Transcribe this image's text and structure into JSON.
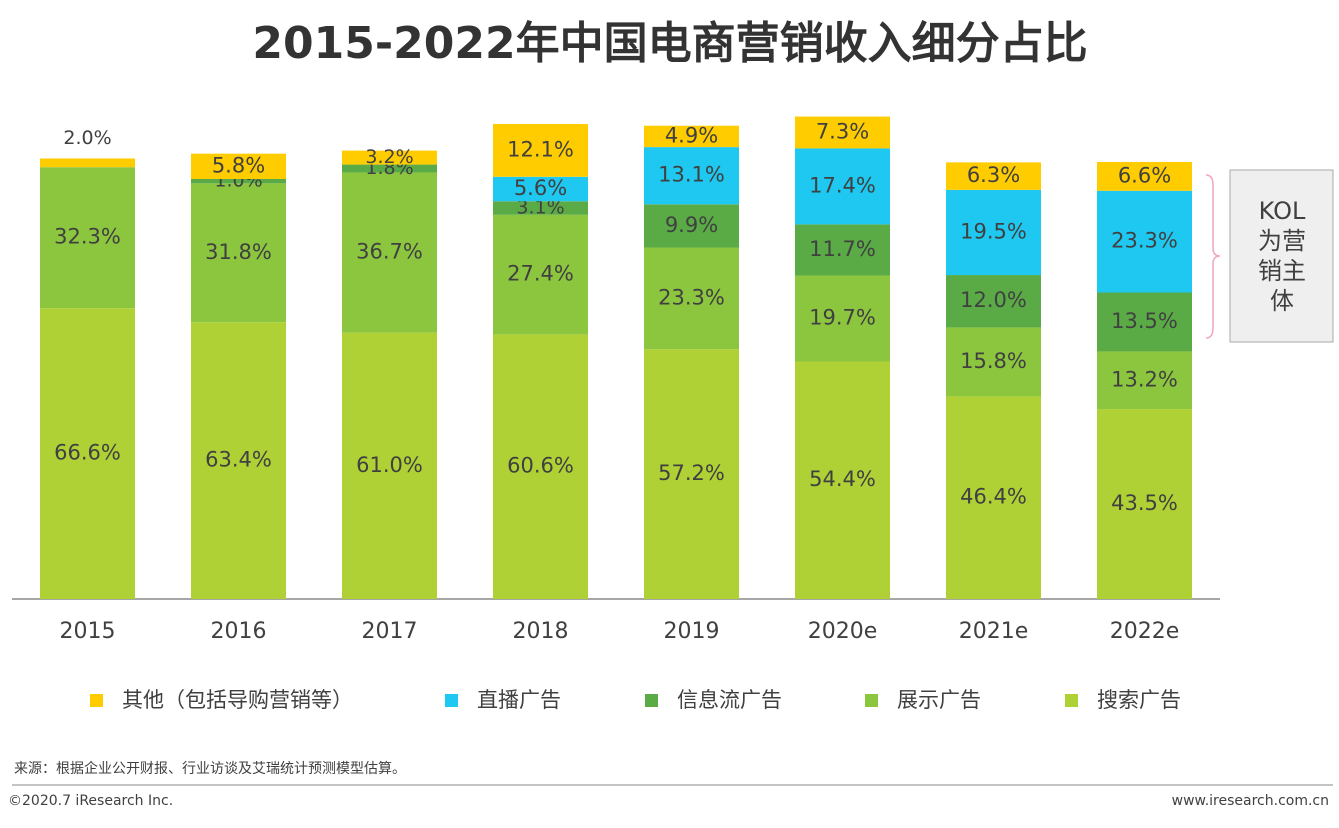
{
  "chart_data": {
    "type": "stacked-bar",
    "title": "2015-2022年中国电商营销收入细分占比",
    "categories": [
      "2015",
      "2016",
      "2017",
      "2018",
      "2019",
      "2020e",
      "2021e",
      "2022e"
    ],
    "series": [
      {
        "name": "其他（包括导购营销等）",
        "color": "#ffcc00",
        "values": [
          2.0,
          5.8,
          3.2,
          12.1,
          4.9,
          7.3,
          6.3,
          6.6
        ],
        "value_labels": [
          "2.0%",
          "5.8%",
          "3.2%",
          "12.1%",
          "4.9%",
          "7.3%",
          "6.3%",
          "6.6%"
        ]
      },
      {
        "name": "直播广告",
        "color": "#1ec8f0",
        "values": [
          null,
          null,
          null,
          5.6,
          13.1,
          17.4,
          19.5,
          23.3
        ],
        "value_labels": [
          null,
          null,
          null,
          "5.6%",
          "13.1%",
          "17.4%",
          "19.5%",
          "23.3%"
        ]
      },
      {
        "name": "信息流广告",
        "color": "#5aab46",
        "values": [
          null,
          1.0,
          1.8,
          3.1,
          9.9,
          11.7,
          12.0,
          13.5
        ],
        "value_labels": [
          null,
          "1.0%",
          "1.8%",
          "3.1%",
          "9.9%",
          "11.7%",
          "12.0%",
          "13.5%"
        ]
      },
      {
        "name": "展示广告",
        "color": "#8cc63f",
        "values": [
          32.3,
          31.8,
          36.7,
          27.4,
          23.3,
          19.7,
          15.8,
          13.2
        ],
        "value_labels": [
          "32.3%",
          "31.8%",
          "36.7%",
          "27.4%",
          "23.3%",
          "19.7%",
          "15.8%",
          "13.2%"
        ]
      },
      {
        "name": "搜索广告",
        "color": "#b0d136",
        "values": [
          66.6,
          63.4,
          61.0,
          60.6,
          57.2,
          54.4,
          46.4,
          43.5
        ],
        "value_labels": [
          "66.6%",
          "63.4%",
          "61.0%",
          "60.6%",
          "57.2%",
          "54.4%",
          "46.4%",
          "43.5%"
        ]
      }
    ],
    "ylim": [
      0,
      112
    ],
    "annotation": "KOL为营销主体"
  },
  "footer": {
    "source": "来源：根据企业公开财报、行业访谈及艾瑞统计预测模型估算。",
    "copyright": "©2020.7 iResearch Inc.",
    "url": "www.iresearch.com.cn"
  }
}
